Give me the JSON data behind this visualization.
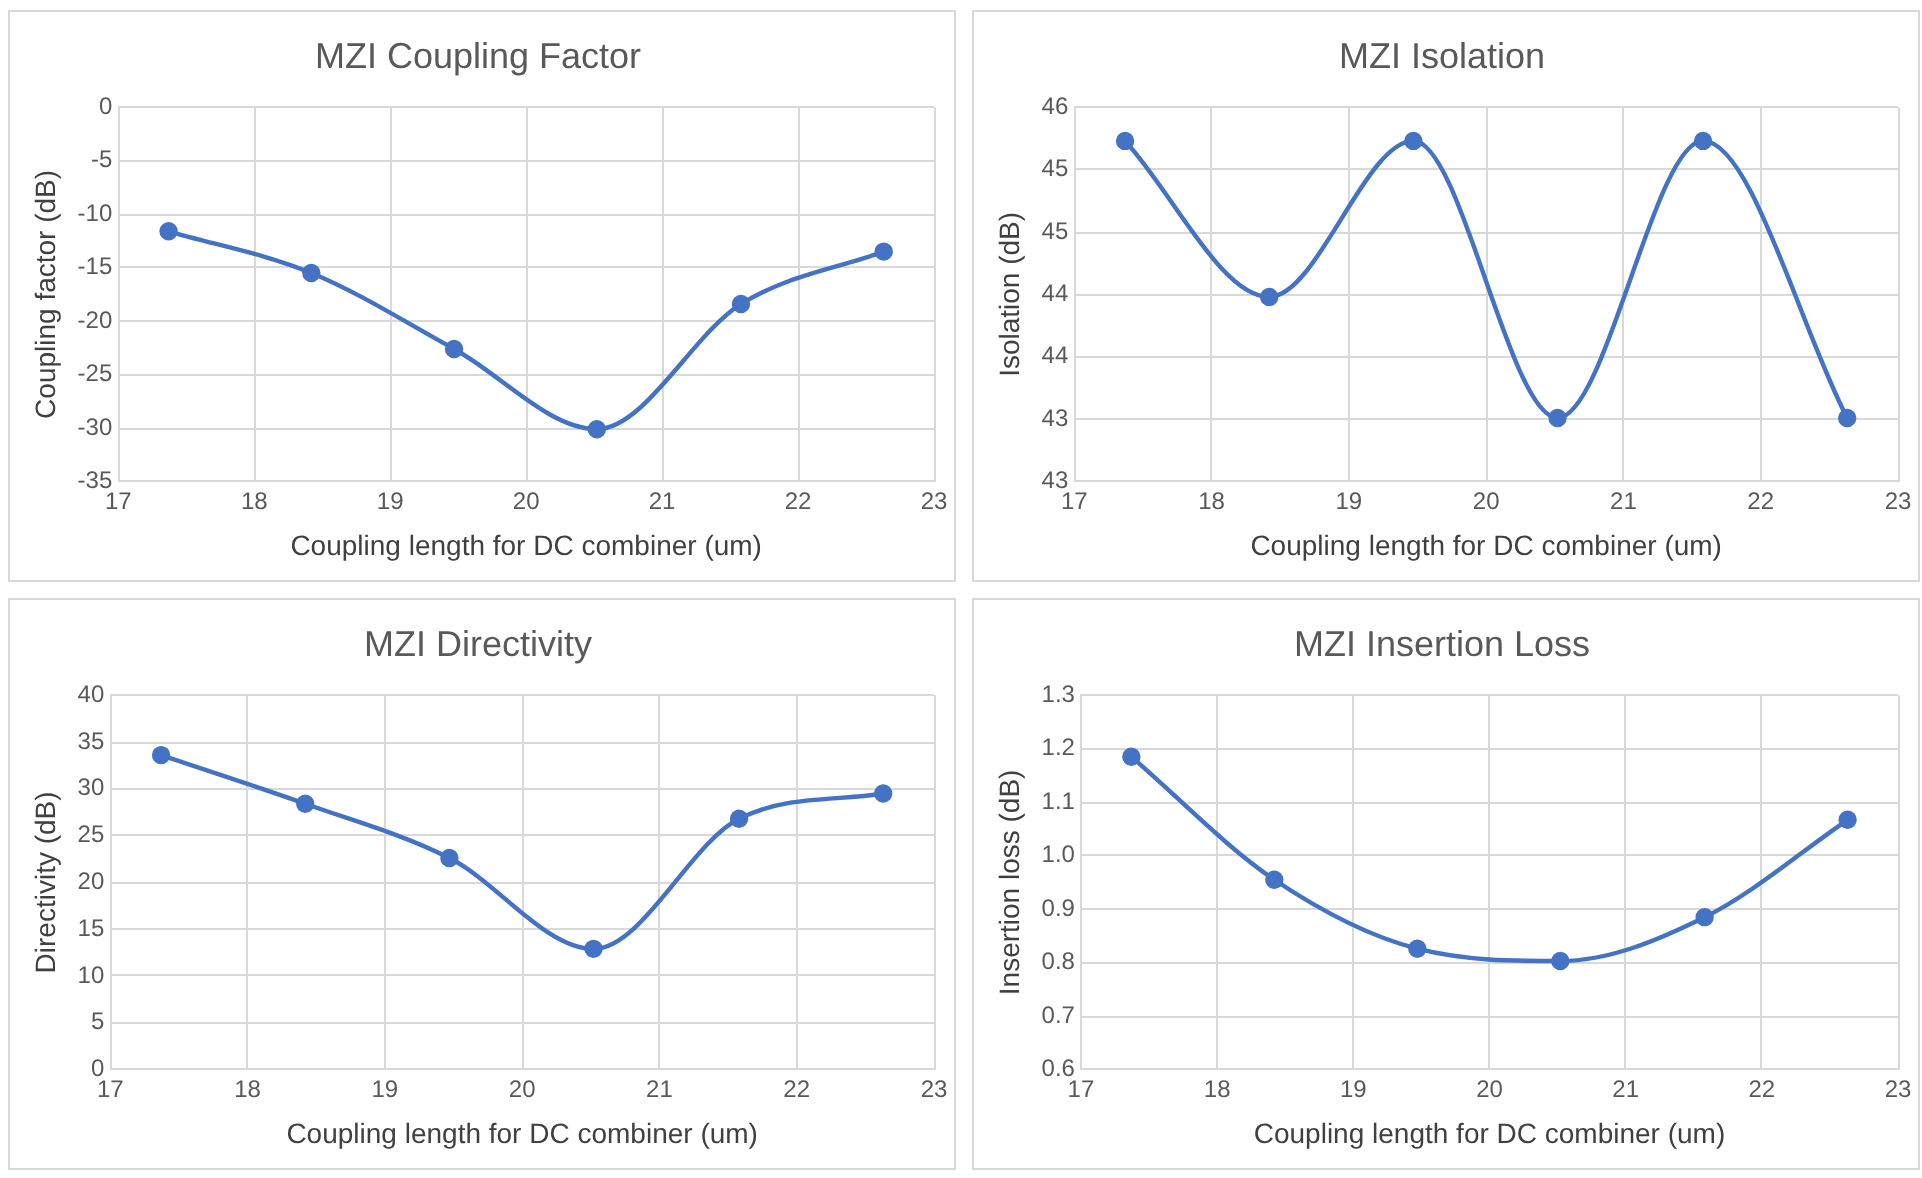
{
  "chart_data": [
    {
      "type": "line",
      "title": "MZI Coupling Factor",
      "xlabel": "Coupling length for DC combiner (um)",
      "ylabel": "Coupling factor (dB)",
      "x": [
        17.37,
        18.42,
        19.47,
        20.52,
        21.58,
        22.63
      ],
      "series": [
        {
          "color": "#4472c4",
          "values": [
            -11.6,
            -15.5,
            -22.6,
            -30.1,
            -18.4,
            -13.5
          ]
        }
      ],
      "xlim": [
        17,
        23
      ],
      "xticks": [
        17,
        18,
        19,
        20,
        21,
        22,
        23
      ],
      "ylim": [
        -35,
        0
      ],
      "yticks": [
        -35,
        -30,
        -25,
        -20,
        -15,
        -10,
        -5,
        0
      ],
      "grid": true,
      "legend": false,
      "marker": "circle",
      "line_style": "solid"
    },
    {
      "type": "line",
      "title": "MZI Isolation",
      "xlabel": "Coupling length for DC combiner (um)",
      "ylabel": "Isolation (dB)",
      "x": [
        17.37,
        18.42,
        19.47,
        20.52,
        21.58,
        22.63
      ],
      "series": [
        {
          "color": "#4472c4",
          "values": [
            45.73,
            44.48,
            45.73,
            43.51,
            45.73,
            43.51
          ]
        }
      ],
      "xlim": [
        17,
        23
      ],
      "xticks": [
        17,
        18,
        19,
        20,
        21,
        22,
        23
      ],
      "ylim": [
        43,
        46
      ],
      "yticks": [
        {
          "value": 43,
          "label": "43"
        },
        {
          "value": 43.5,
          "label": "43"
        },
        {
          "value": 44,
          "label": "44"
        },
        {
          "value": 44.5,
          "label": "44"
        },
        {
          "value": 45,
          "label": "45"
        },
        {
          "value": 45.5,
          "label": "45"
        },
        {
          "value": 46,
          "label": "46"
        }
      ],
      "grid": true,
      "legend": false,
      "marker": "circle",
      "line_style": "solid"
    },
    {
      "type": "line",
      "title": "MZI Directivity",
      "xlabel": "Coupling length for DC combiner (um)",
      "ylabel": "Directivity (dB)",
      "x": [
        17.37,
        18.42,
        19.47,
        20.52,
        21.58,
        22.63
      ],
      "series": [
        {
          "color": "#4472c4",
          "values": [
            33.6,
            28.4,
            22.6,
            12.9,
            26.8,
            29.5
          ]
        }
      ],
      "xlim": [
        17,
        23
      ],
      "xticks": [
        17,
        18,
        19,
        20,
        21,
        22,
        23
      ],
      "ylim": [
        0,
        40
      ],
      "yticks": [
        0,
        5,
        10,
        15,
        20,
        25,
        30,
        35,
        40
      ],
      "grid": true,
      "legend": false,
      "marker": "circle",
      "line_style": "solid"
    },
    {
      "type": "line",
      "title": "MZI Insertion Loss",
      "xlabel": "Coupling length for DC combiner (um)",
      "ylabel": "Insertion loss (dB)",
      "x": [
        17.37,
        18.42,
        19.47,
        20.52,
        21.58,
        22.63
      ],
      "series": [
        {
          "color": "#4472c4",
          "values": [
            1.185,
            0.955,
            0.826,
            0.803,
            0.885,
            1.067
          ]
        }
      ],
      "xlim": [
        17,
        23
      ],
      "xticks": [
        17,
        18,
        19,
        20,
        21,
        22,
        23
      ],
      "ylim": [
        0.6,
        1.3
      ],
      "yticks": [
        {
          "value": 0.6,
          "label": "0.6"
        },
        {
          "value": 0.7,
          "label": "0.7"
        },
        {
          "value": 0.8,
          "label": "0.8"
        },
        {
          "value": 0.9,
          "label": "0.9"
        },
        {
          "value": 1,
          "label": "1.0"
        },
        {
          "value": 1.1,
          "label": "1.1"
        },
        {
          "value": 1.2,
          "label": "1.2"
        },
        {
          "value": 1.3,
          "label": "1.3"
        }
      ],
      "grid": true,
      "legend": false,
      "marker": "circle",
      "line_style": "solid"
    }
  ]
}
